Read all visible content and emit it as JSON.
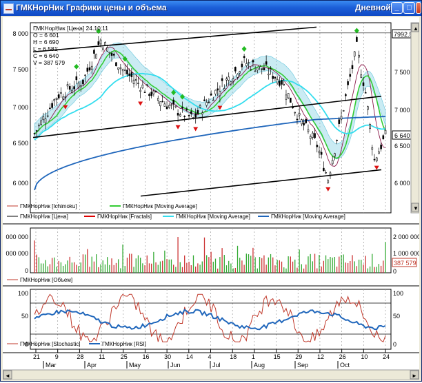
{
  "window": {
    "title": "ГМКНорНик Графики цены и объема",
    "mode": "Дневной",
    "minimize_glyph": "_",
    "maximize_glyph": "□",
    "close_glyph": "✕"
  },
  "price_panel": {
    "info": [
      "ГМКНорНик [Цена] 24.10.11",
      "O = 6 601",
      "H = 6 690",
      "L = 6 581",
      "C = 6 640",
      "V = 387 579"
    ],
    "left_ticks": [
      "8 000",
      "7 500",
      "7 000",
      "6 500",
      "6 000"
    ],
    "right_ticks": [
      "7 500",
      "7 000",
      "6 500",
      "6 000"
    ],
    "right_top_label": "7992.50",
    "right_price_label": "6 640",
    "legend": [
      {
        "label": "ГМКНорНик [Ichimoku]",
        "color": "#c0392b"
      },
      {
        "label": "ГМКНорНик [Moving Average]",
        "color": "#33cc33"
      },
      {
        "label": "ГМКНорНик [Цена]",
        "color": "#000000"
      },
      {
        "label": "ГМКНорНик [Fractals]",
        "color": "#dd0000"
      },
      {
        "label": "ГМКНорНик [Moving Average]",
        "color": "#33ddee"
      },
      {
        "label": "ГМКНорНик [Moving Average]",
        "color": "#1f66bb"
      }
    ]
  },
  "volume_panel": {
    "left_ticks": [
      "000 000",
      "000 000",
      "0"
    ],
    "right_ticks": [
      "2 000 000",
      "1 000 000",
      "0"
    ],
    "right_value_label": "387 579",
    "legend": [
      {
        "label": "ГМКНорНик [Объем]",
        "color": "#c0392b"
      }
    ]
  },
  "osc_panel": {
    "left_ticks": [
      "100",
      "50",
      "0"
    ],
    "right_ticks": [
      "100",
      "50",
      "0"
    ],
    "legend": [
      {
        "label": "ГМКНорНик [Stochastic]",
        "color": "#c0392b"
      },
      {
        "label": "ГМКНорНик [RSI]",
        "color": "#1f66bb"
      }
    ]
  },
  "time_axis": {
    "days": [
      "21",
      "9",
      "28",
      "11",
      "25",
      "16",
      "30",
      "14",
      "4",
      "18",
      "1",
      "15",
      "29",
      "12",
      "26",
      "10",
      "24"
    ],
    "months": [
      "Mar",
      "Apr",
      "May",
      "Jun",
      "Jul",
      "Aug",
      "Sep",
      "Oct"
    ]
  },
  "colors": {
    "candle_up": "#000000",
    "candle_down": "#000000",
    "fractal_up": "#22bb22",
    "fractal_down": "#dd1111",
    "cloud": "#66c6dd",
    "ma_green": "#33cc33",
    "ma_cyan": "#33ddee",
    "ma_blue": "#1f66bb",
    "ichimoku": "#8b1a4a",
    "vol_up": "#33aa33",
    "vol_down": "#cc3333",
    "stoch": "#c0392b",
    "rsi": "#1f66bb",
    "trend": "#000000"
  }
}
